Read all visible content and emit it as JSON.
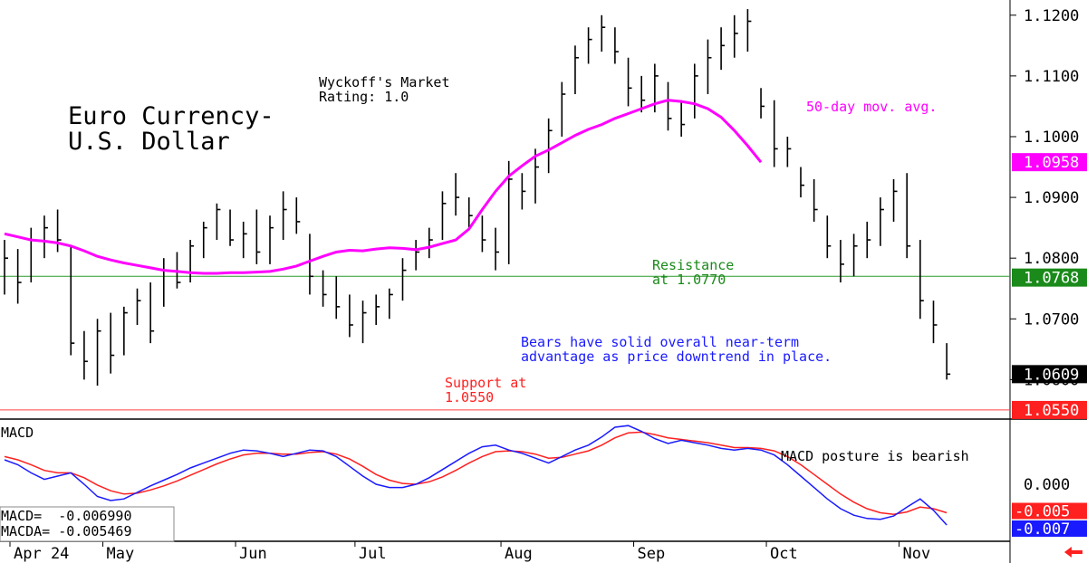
{
  "chart_data": {
    "type": "bar",
    "title": {
      "line1": "Euro Currency-",
      "line2": "U.S. Dollar"
    },
    "rating": {
      "line1": "Wyckoff's Market",
      "line2": "Rating: 1.0"
    },
    "ma_label": "50-day mov. avg.",
    "resistance_label": {
      "line1": "Resistance",
      "line2": "at 1.0770"
    },
    "support_label": {
      "line1": "Support at",
      "line2": "1.0550"
    },
    "comment": {
      "line1": "Bears have solid overall near-term",
      "line2": "advantage as price downtrend in place."
    },
    "y_ticks": [
      "1.1200",
      "1.1100",
      "1.1000",
      "1.0900",
      "1.0800",
      "1.0700",
      "1.0600"
    ],
    "y_tick_values": [
      1.12,
      1.11,
      1.1,
      1.09,
      1.08,
      1.07,
      1.06
    ],
    "ylim": [
      1.0535,
      1.1225
    ],
    "price_tags": [
      {
        "label": "1.0958",
        "value": 1.0958,
        "color": "#ff00ff"
      },
      {
        "label": "1.0768",
        "value": 1.0768,
        "color": "#1a8a1a"
      },
      {
        "label": "1.0609",
        "value": 1.0609,
        "color": "#000000"
      },
      {
        "label": "1.0550",
        "value": 1.055,
        "color": "#ff2020"
      }
    ],
    "resistance": 1.077,
    "support": 1.055,
    "x_labels": [
      {
        "label": "Apr 24",
        "day": 0
      },
      {
        "label": "May",
        "day": 7
      },
      {
        "label": "Jun",
        "day": 17
      },
      {
        "label": "Jul",
        "day": 26
      },
      {
        "label": "Aug",
        "day": 37
      },
      {
        "label": "Sep",
        "day": 47
      },
      {
        "label": "Oct",
        "day": 57
      },
      {
        "label": "Nov",
        "day": 67
      }
    ],
    "ohlc": [
      [
        1.083,
        1.074,
        1.08
      ],
      [
        1.0815,
        1.0725,
        1.076
      ],
      [
        1.085,
        1.076,
        1.083
      ],
      [
        1.087,
        1.08,
        1.085
      ],
      [
        1.088,
        1.081,
        1.083
      ],
      [
        1.082,
        1.064,
        1.066
      ],
      [
        1.068,
        1.06,
        1.063
      ],
      [
        1.07,
        1.059,
        1.068
      ],
      [
        1.071,
        1.061,
        1.064
      ],
      [
        1.072,
        1.064,
        1.071
      ],
      [
        1.075,
        1.069,
        1.073
      ],
      [
        1.076,
        1.066,
        1.068
      ],
      [
        1.08,
        1.072,
        1.078
      ],
      [
        1.081,
        1.075,
        1.076
      ],
      [
        1.083,
        1.076,
        1.082
      ],
      [
        1.086,
        1.08,
        1.085
      ],
      [
        1.089,
        1.083,
        1.088
      ],
      [
        1.088,
        1.082,
        1.083
      ],
      [
        1.086,
        1.08,
        1.084
      ],
      [
        1.088,
        1.079,
        1.081
      ],
      [
        1.087,
        1.079,
        1.085
      ],
      [
        1.091,
        1.083,
        1.088
      ],
      [
        1.09,
        1.084,
        1.086
      ],
      [
        1.084,
        1.074,
        1.077
      ],
      [
        1.078,
        1.072,
        1.074
      ],
      [
        1.077,
        1.07,
        1.072
      ],
      [
        1.074,
        1.067,
        1.069
      ],
      [
        1.073,
        1.066,
        1.071
      ],
      [
        1.074,
        1.069,
        1.072
      ],
      [
        1.075,
        1.07,
        1.074
      ],
      [
        1.08,
        1.073,
        1.078
      ],
      [
        1.083,
        1.078,
        1.081
      ],
      [
        1.085,
        1.08,
        1.083
      ],
      [
        1.091,
        1.083,
        1.089
      ],
      [
        1.094,
        1.087,
        1.09
      ],
      [
        1.09,
        1.085,
        1.087
      ],
      [
        1.087,
        1.081,
        1.083
      ],
      [
        1.085,
        1.078,
        1.081
      ],
      [
        1.096,
        1.079,
        1.093
      ],
      [
        1.094,
        1.088,
        1.091
      ],
      [
        1.098,
        1.089,
        1.095
      ],
      [
        1.103,
        1.094,
        1.101
      ],
      [
        1.109,
        1.1,
        1.107
      ],
      [
        1.115,
        1.107,
        1.113
      ],
      [
        1.118,
        1.112,
        1.116
      ],
      [
        1.12,
        1.114,
        1.118
      ],
      [
        1.118,
        1.112,
        1.114
      ],
      [
        1.113,
        1.105,
        1.108
      ],
      [
        1.11,
        1.104,
        1.106
      ],
      [
        1.112,
        1.104,
        1.11
      ],
      [
        1.109,
        1.101,
        1.103
      ],
      [
        1.106,
        1.1,
        1.102
      ],
      [
        1.112,
        1.103,
        1.11
      ],
      [
        1.116,
        1.107,
        1.113
      ],
      [
        1.118,
        1.111,
        1.115
      ],
      [
        1.12,
        1.113,
        1.117
      ],
      [
        1.121,
        1.114,
        1.119
      ],
      [
        1.108,
        1.103,
        1.105
      ],
      [
        1.106,
        1.095,
        1.098
      ],
      [
        1.1,
        1.095,
        1.098
      ],
      [
        1.095,
        1.09,
        1.092
      ],
      [
        1.093,
        1.086,
        1.088
      ],
      [
        1.087,
        1.08,
        1.082
      ],
      [
        1.083,
        1.076,
        1.079
      ],
      [
        1.084,
        1.077,
        1.082
      ],
      [
        1.086,
        1.08,
        1.083
      ],
      [
        1.09,
        1.082,
        1.088
      ],
      [
        1.093,
        1.086,
        1.091
      ],
      [
        1.094,
        1.08,
        1.082
      ],
      [
        1.083,
        1.07,
        1.073
      ],
      [
        1.073,
        1.066,
        1.069
      ],
      [
        1.066,
        1.06,
        1.0609
      ]
    ],
    "ma50": [
      1.084,
      1.0835,
      1.083,
      1.0828,
      1.0825,
      1.082,
      1.0812,
      1.0803,
      1.0797,
      1.0792,
      1.0788,
      1.0784,
      1.078,
      1.0778,
      1.0776,
      1.0775,
      1.0775,
      1.0776,
      1.0776,
      1.0777,
      1.0778,
      1.0782,
      1.0787,
      1.0795,
      1.0803,
      1.081,
      1.0813,
      1.0812,
      1.0815,
      1.0817,
      1.0816,
      1.0814,
      1.0818,
      1.0824,
      1.083,
      1.0848,
      1.088,
      1.091,
      1.0935,
      1.0952,
      1.0968,
      1.0978,
      1.099,
      1.1002,
      1.1012,
      1.102,
      1.103,
      1.1038,
      1.1046,
      1.1054,
      1.106,
      1.1058,
      1.1054,
      1.1046,
      1.1032,
      1.101,
      1.0985,
      1.0958
    ],
    "macd_label": "MACD",
    "macd_note": "MACD posture is bearish",
    "macd_zero_label": "0.000",
    "macd_legend": {
      "macd": "MACD=  -0.006990",
      "macda": "MACDA= -0.005469"
    },
    "macd_tags": [
      {
        "label": "-0.005",
        "value": -0.0055,
        "color": "#ff2020"
      },
      {
        "label": "-0.007",
        "value": -0.007,
        "color": "#1a1aff"
      }
    ],
    "macd_ylim": [
      -0.009,
      0.006
    ],
    "macd": [
      0.001,
      0.0004,
      -0.0006,
      -0.0014,
      -0.001,
      -0.0006,
      -0.002,
      -0.0035,
      -0.004,
      -0.0038,
      -0.003,
      -0.0022,
      -0.0015,
      -0.0008,
      0.0,
      0.0006,
      0.0012,
      0.0018,
      0.0022,
      0.0021,
      0.0018,
      0.0014,
      0.0018,
      0.0022,
      0.0021,
      0.0014,
      0.0002,
      -0.001,
      -0.002,
      -0.0024,
      -0.0024,
      -0.002,
      -0.0012,
      -0.0002,
      0.0008,
      0.0018,
      0.0026,
      0.0028,
      0.0022,
      0.0018,
      0.0012,
      0.0006,
      0.0014,
      0.0022,
      0.0028,
      0.0038,
      0.005,
      0.0052,
      0.0045,
      0.0036,
      0.003,
      0.0034,
      0.0031,
      0.0028,
      0.0024,
      0.0022,
      0.0024,
      0.0022,
      0.0016,
      0.0004,
      -0.001,
      -0.0024,
      -0.0038,
      -0.005,
      -0.0058,
      -0.0062,
      -0.0063,
      -0.0059,
      -0.0048,
      -0.0038,
      -0.0052,
      -0.007
    ],
    "macda": [
      0.0014,
      0.001,
      0.0004,
      -0.0003,
      -0.0006,
      -0.0006,
      -0.0012,
      -0.0021,
      -0.0028,
      -0.0032,
      -0.0031,
      -0.0027,
      -0.0022,
      -0.0016,
      -0.0009,
      -0.0002,
      0.0005,
      0.0011,
      0.0016,
      0.0018,
      0.0018,
      0.0017,
      0.0017,
      0.0019,
      0.002,
      0.0017,
      0.0011,
      0.0002,
      -0.0008,
      -0.0015,
      -0.0019,
      -0.002,
      -0.0017,
      -0.0011,
      -0.0003,
      0.0006,
      0.0014,
      0.002,
      0.0021,
      0.002,
      0.0017,
      0.0012,
      0.0013,
      0.0017,
      0.0021,
      0.0028,
      0.0037,
      0.0043,
      0.0044,
      0.0041,
      0.0037,
      0.0035,
      0.0033,
      0.0031,
      0.0028,
      0.0025,
      0.0025,
      0.0024,
      0.0021,
      0.0014,
      0.0004,
      -0.0008,
      -0.002,
      -0.0032,
      -0.0042,
      -0.005,
      -0.0055,
      -0.0057,
      -0.0054,
      -0.0048,
      -0.005,
      -0.0055
    ]
  }
}
